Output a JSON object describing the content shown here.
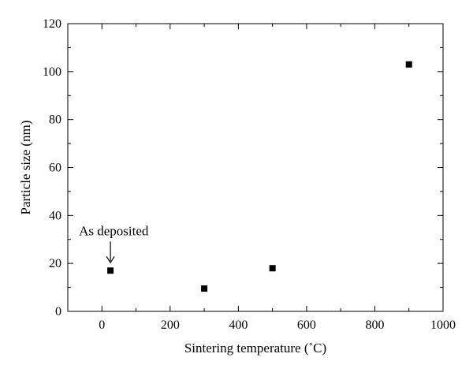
{
  "chart_data": {
    "type": "scatter",
    "title": "",
    "xlabel": "Sintering temperature (˚C)",
    "ylabel": "Particle size (nm)",
    "xlim": [
      -100,
      1000
    ],
    "ylim": [
      0,
      120
    ],
    "xticks": [
      0,
      200,
      400,
      600,
      800,
      1000
    ],
    "yticks": [
      0,
      20,
      40,
      60,
      80,
      100,
      120
    ],
    "grid": false,
    "series": [
      {
        "marker": "square",
        "color": "#000000",
        "points": [
          {
            "x": 25,
            "y": 17
          },
          {
            "x": 300,
            "y": 9.5
          },
          {
            "x": 500,
            "y": 18
          },
          {
            "x": 900,
            "y": 103
          }
        ]
      }
    ],
    "annotations": [
      {
        "text": "As deposited",
        "x": 25,
        "y": 17,
        "arrow": true
      }
    ]
  }
}
